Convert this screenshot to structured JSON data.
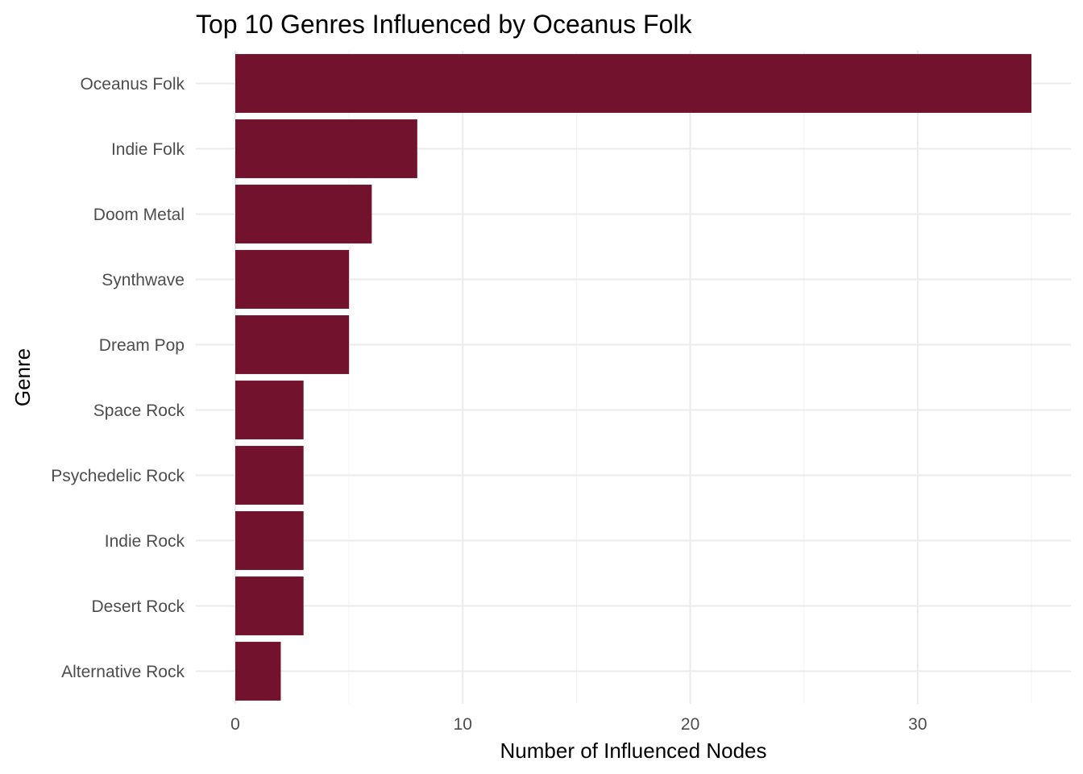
{
  "chart_data": {
    "type": "bar",
    "orientation": "horizontal",
    "title": "Top 10 Genres Influenced by Oceanus Folk",
    "xlabel": "Number of Influenced Nodes",
    "ylabel": "Genre",
    "categories": [
      "Oceanus Folk",
      "Indie Folk",
      "Doom Metal",
      "Synthwave",
      "Dream Pop",
      "Space Rock",
      "Psychedelic Rock",
      "Indie Rock",
      "Desert Rock",
      "Alternative Rock"
    ],
    "values": [
      35,
      8,
      6,
      5,
      5,
      3,
      3,
      3,
      3,
      2
    ],
    "xlim": [
      0,
      35
    ],
    "x_ticks": [
      0,
      10,
      20,
      30
    ],
    "x_tick_labels": [
      "0",
      "10",
      "20",
      "30"
    ],
    "grid": true,
    "legend": "none",
    "colors": {
      "bar": "#73122d",
      "grid_major": "#ebebeb",
      "grid_minor": "#f4f4f4",
      "tick_text": "#4d4d4d",
      "text": "#000000"
    }
  }
}
